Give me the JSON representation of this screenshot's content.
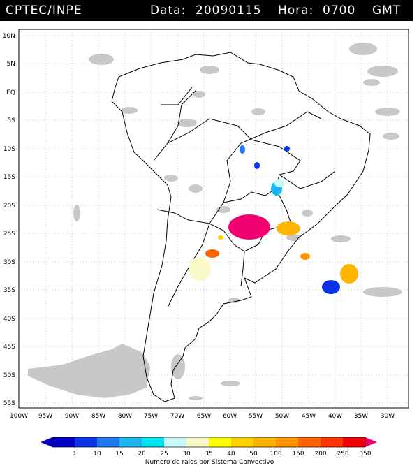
{
  "header": {
    "source": "CPTEC/INPE",
    "date_label": "Data:",
    "date": "20090115",
    "hour_label": "Hora:",
    "hour": "0700",
    "tz": "GMT"
  },
  "map": {
    "lat_ticks": [
      "10N",
      "5N",
      "EQ",
      "5S",
      "10S",
      "15S",
      "20S",
      "25S",
      "30S",
      "35S",
      "40S",
      "45S",
      "50S",
      "55S"
    ],
    "lon_ticks": [
      "100W",
      "95W",
      "90W",
      "85W",
      "80W",
      "75W",
      "70W",
      "65W",
      "60W",
      "55W",
      "50W",
      "45W",
      "40W",
      "35W",
      "30W"
    ],
    "cloud_color": "#c8c8c8"
  },
  "legend": {
    "ticks": [
      "1",
      "10",
      "15",
      "20",
      "25",
      "30",
      "35",
      "40",
      "50",
      "100",
      "150",
      "200",
      "250",
      "350"
    ],
    "colors": [
      "#0000c8",
      "#0a32e6",
      "#1e78f0",
      "#1eb4f0",
      "#00e6f0",
      "#c8fafa",
      "#fafac8",
      "#ffff00",
      "#ffd200",
      "#ffb400",
      "#ff9600",
      "#ff6400",
      "#ff3200",
      "#f00000",
      "#f00070"
    ],
    "title": "Numero de raios por Sistema Convectivo"
  }
}
